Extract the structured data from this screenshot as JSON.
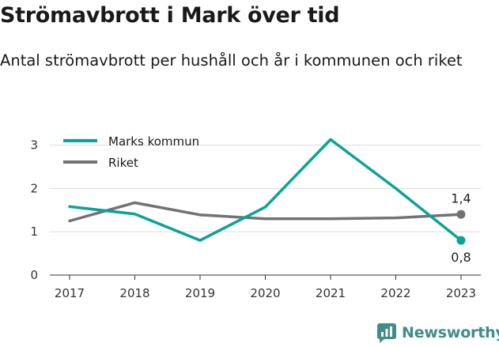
{
  "chart_data": {
    "type": "line",
    "title": "Strömavbrott i Mark över tid",
    "subtitle": "Antal strömavbrott per hushåll och år i kommunen och riket",
    "x": [
      "2017",
      "2018",
      "2019",
      "2020",
      "2021",
      "2022",
      "2023"
    ],
    "y_ticks": [
      "0",
      "1",
      "2",
      "3"
    ],
    "ylim": [
      0,
      3.3
    ],
    "series": [
      {
        "name": "Marks kommun",
        "color": "#0aa399",
        "values": [
          1.58,
          1.41,
          0.8,
          1.57,
          3.13,
          2.0,
          0.8
        ],
        "end_label": "0,8"
      },
      {
        "name": "Riket",
        "color": "#727176",
        "values": [
          1.25,
          1.67,
          1.39,
          1.3,
          1.3,
          1.32,
          1.4
        ],
        "end_label": "1,4"
      }
    ],
    "grid": true,
    "legend": "top-left"
  },
  "brand": {
    "name": "Newsworthy",
    "color": "#3f8d88"
  }
}
